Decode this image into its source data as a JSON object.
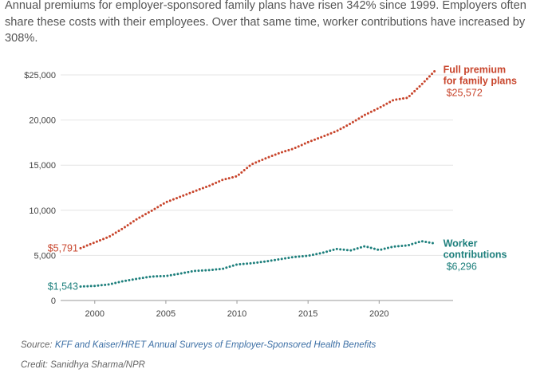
{
  "caption": "Annual premiums for employer-sponsored family plans have risen 342% since 1999. Employers often share these costs with their employees. Over that same time, worker contributions have increased by 308%.",
  "chart_data": {
    "type": "line",
    "x": [
      1999,
      2000,
      2001,
      2002,
      2003,
      2004,
      2005,
      2006,
      2007,
      2008,
      2009,
      2010,
      2011,
      2012,
      2013,
      2014,
      2015,
      2016,
      2017,
      2018,
      2019,
      2020,
      2021,
      2022,
      2023,
      2024
    ],
    "series": [
      {
        "name": "Full premium for family plans",
        "label_lines": [
          "Full premium",
          "for family plans"
        ],
        "color": "#c8452c",
        "values": [
          5791,
          6438,
          7061,
          8003,
          9068,
          9950,
          10880,
          11480,
          12106,
          12680,
          13375,
          13770,
          15073,
          15745,
          16351,
          16834,
          17545,
          18142,
          18764,
          19616,
          20576,
          21342,
          22221,
          22463,
          23968,
          25572
        ],
        "start_label": "$5,791",
        "end_label": "$25,572"
      },
      {
        "name": "Worker contributions",
        "label_lines": [
          "Worker",
          "contributions"
        ],
        "color": "#1d7f7c",
        "values": [
          1543,
          1619,
          1787,
          2137,
          2412,
          2661,
          2713,
          2973,
          3281,
          3354,
          3515,
          3997,
          4129,
          4316,
          4565,
          4823,
          4955,
          5277,
          5714,
          5547,
          6015,
          5588,
          5969,
          6106,
          6575,
          6296
        ],
        "start_label": "$1,543",
        "end_label": "$6,296"
      }
    ],
    "y_ticks": [
      0,
      5000,
      10000,
      15000,
      20000,
      25000
    ],
    "y_tick_labels": [
      "0",
      "5,000",
      "10,000",
      "15,000",
      "20,000",
      "$25,000"
    ],
    "x_ticks": [
      2000,
      2005,
      2010,
      2015,
      2020
    ],
    "x_tick_labels": [
      "2000",
      "2005",
      "2010",
      "2015",
      "2020"
    ],
    "xlim": [
      1997.6,
      2025.2
    ],
    "ylim": [
      0,
      25000
    ],
    "grid": "horizontal",
    "title": "",
    "xlabel": "",
    "ylabel": ""
  },
  "source": {
    "prefix": "Source: ",
    "text": "KFF and Kaiser/HRET Annual Surveys of Employer-Sponsored Health Benefits"
  },
  "credit": "Credit: Sanidhya Sharma/NPR"
}
